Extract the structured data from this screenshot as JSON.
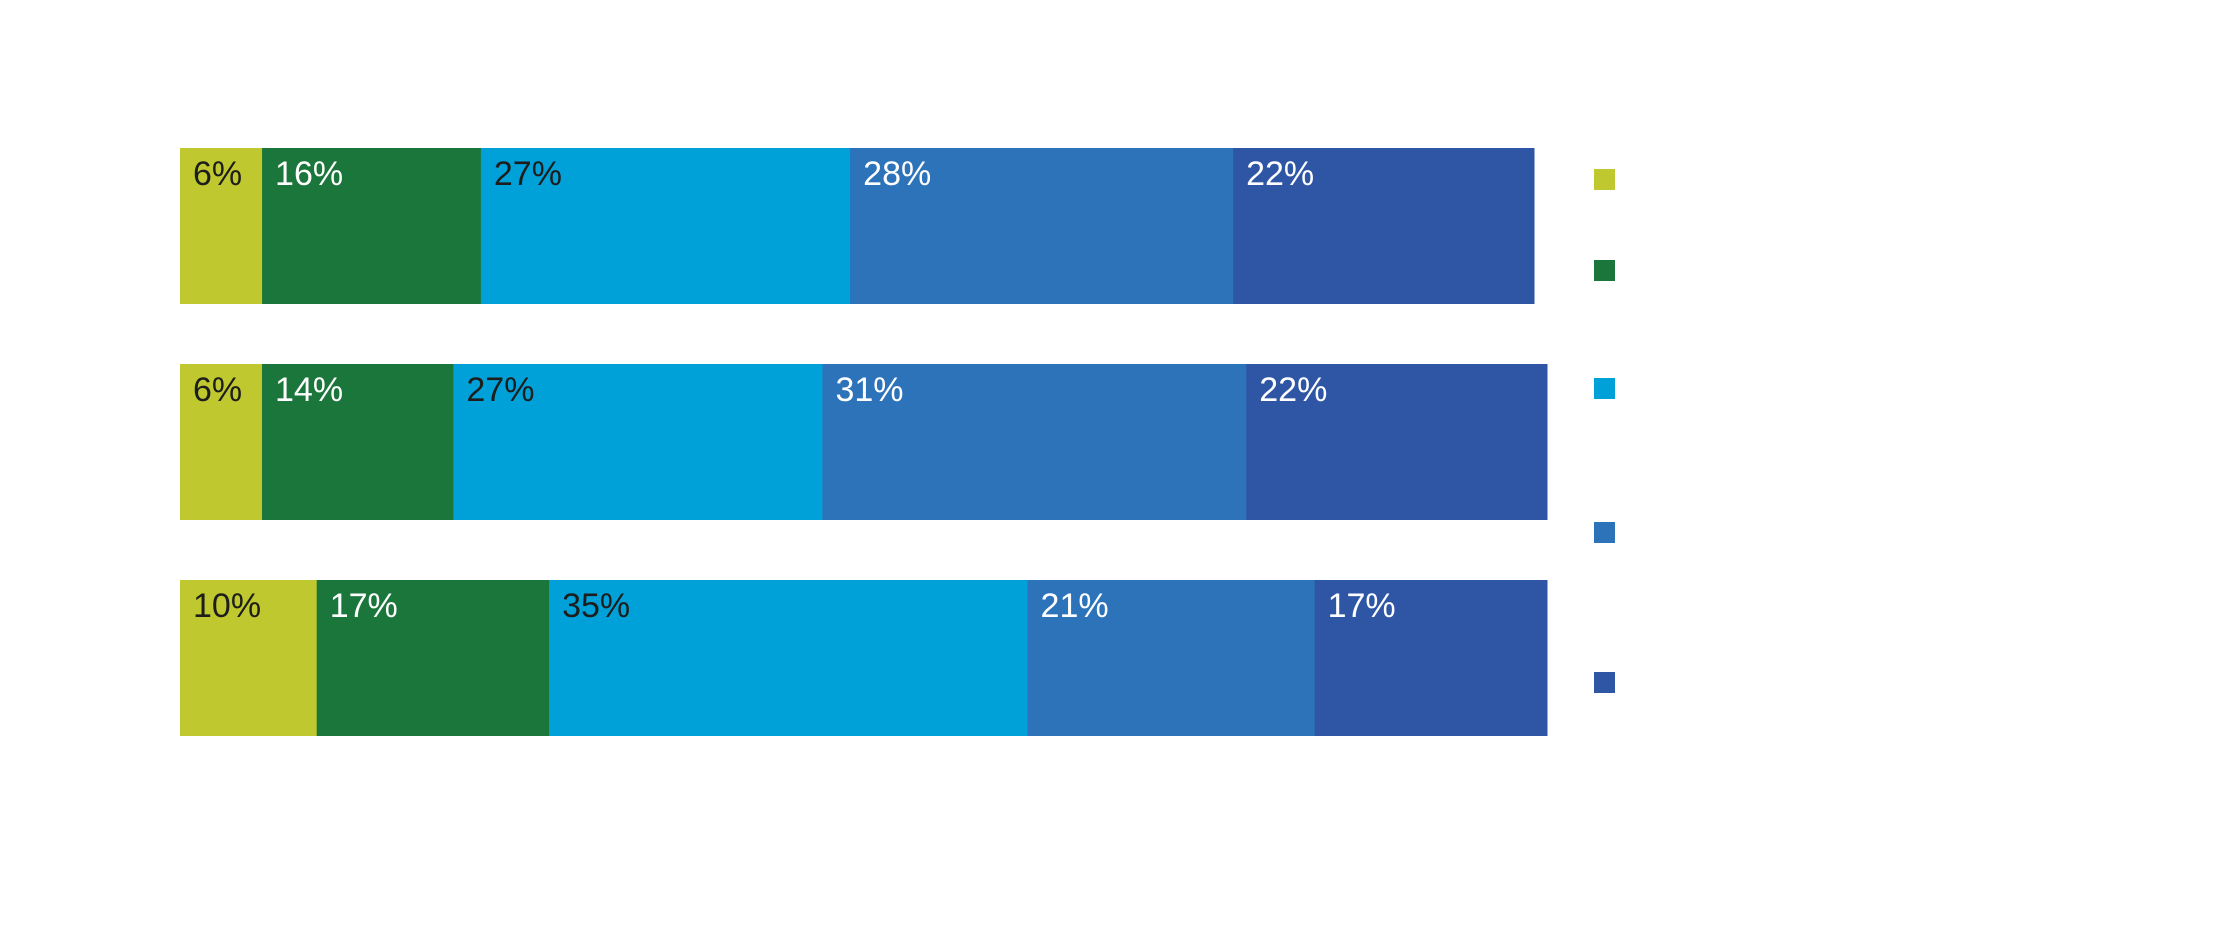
{
  "colors": {
    "cat1": "#bfc82f",
    "cat2": "#1b763b",
    "cat3": "#00a1d8",
    "cat4": "#2c73ba",
    "cat5": "#2f56a5",
    "label_dark": "#1d1d1b",
    "label_light": "#ffffff"
  },
  "chart_data": {
    "type": "bar",
    "orientation": "horizontal",
    "stacked": true,
    "title": "",
    "xlabel": "",
    "ylabel": "",
    "categories": [
      "",
      "",
      ""
    ],
    "series": [
      {
        "color_key": "cat1",
        "values": [
          6,
          6,
          10
        ],
        "labels": [
          "6%",
          "6%",
          "10%"
        ]
      },
      {
        "color_key": "cat2",
        "values": [
          16,
          14,
          17
        ],
        "labels": [
          "16%",
          "14%",
          "17%"
        ]
      },
      {
        "color_key": "cat3",
        "values": [
          27,
          27,
          35
        ],
        "labels": [
          "27%",
          "27%",
          "35%"
        ]
      },
      {
        "color_key": "cat4",
        "values": [
          28,
          31,
          21
        ],
        "labels": [
          "28%",
          "31%",
          "21%"
        ]
      },
      {
        "color_key": "cat5",
        "values": [
          22,
          22,
          17
        ],
        "labels": [
          "22%",
          "22%",
          "17%"
        ]
      }
    ],
    "xlim": [
      0,
      100
    ],
    "grid": false,
    "legend": {
      "placement": "right",
      "entries": [
        {
          "color_key": "cat1",
          "label": ""
        },
        {
          "color_key": "cat2",
          "label": ""
        },
        {
          "color_key": "cat3",
          "label": ""
        },
        {
          "color_key": "cat4",
          "label": ""
        },
        {
          "color_key": "cat5",
          "label": ""
        }
      ]
    }
  }
}
